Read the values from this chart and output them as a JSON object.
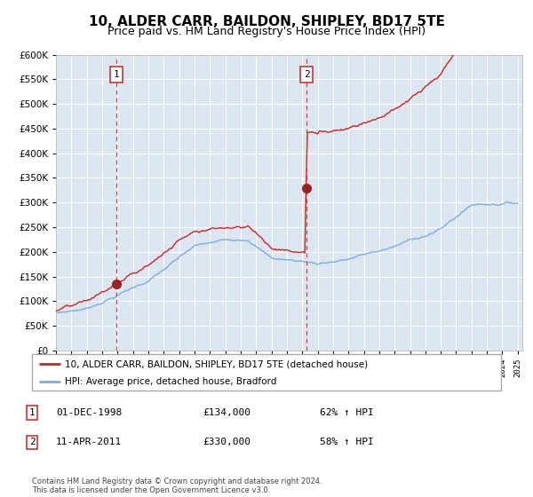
{
  "title": "10, ALDER CARR, BAILDON, SHIPLEY, BD17 5TE",
  "subtitle": "Price paid vs. HM Land Registry's House Price Index (HPI)",
  "ylim": [
    0,
    600000
  ],
  "yticks": [
    0,
    50000,
    100000,
    150000,
    200000,
    250000,
    300000,
    350000,
    400000,
    450000,
    500000,
    550000,
    600000
  ],
  "background_color": "#dce6f1",
  "grid_color": "#ffffff",
  "title_fontsize": 11,
  "subtitle_fontsize": 9,
  "purchase1_x": 1998.917,
  "purchase1_price": 134000,
  "purchase1_label": "1",
  "purchase2_x": 2011.278,
  "purchase2_price": 330000,
  "purchase2_label": "2",
  "legend_line1": "10, ALDER CARR, BAILDON, SHIPLEY, BD17 5TE (detached house)",
  "legend_line2": "HPI: Average price, detached house, Bradford",
  "table_row1": [
    "1",
    "01-DEC-1998",
    "£134,000",
    "62% ↑ HPI"
  ],
  "table_row2": [
    "2",
    "11-APR-2011",
    "£330,000",
    "58% ↑ HPI"
  ],
  "footer": "Contains HM Land Registry data © Crown copyright and database right 2024.\nThis data is licensed under the Open Government Licence v3.0.",
  "hpi_color": "#7aaedc",
  "price_color": "#cc2222",
  "vline_color": "#cc4444",
  "marker_color": "#992222",
  "xmin": 1995,
  "xmax": 2025.3
}
